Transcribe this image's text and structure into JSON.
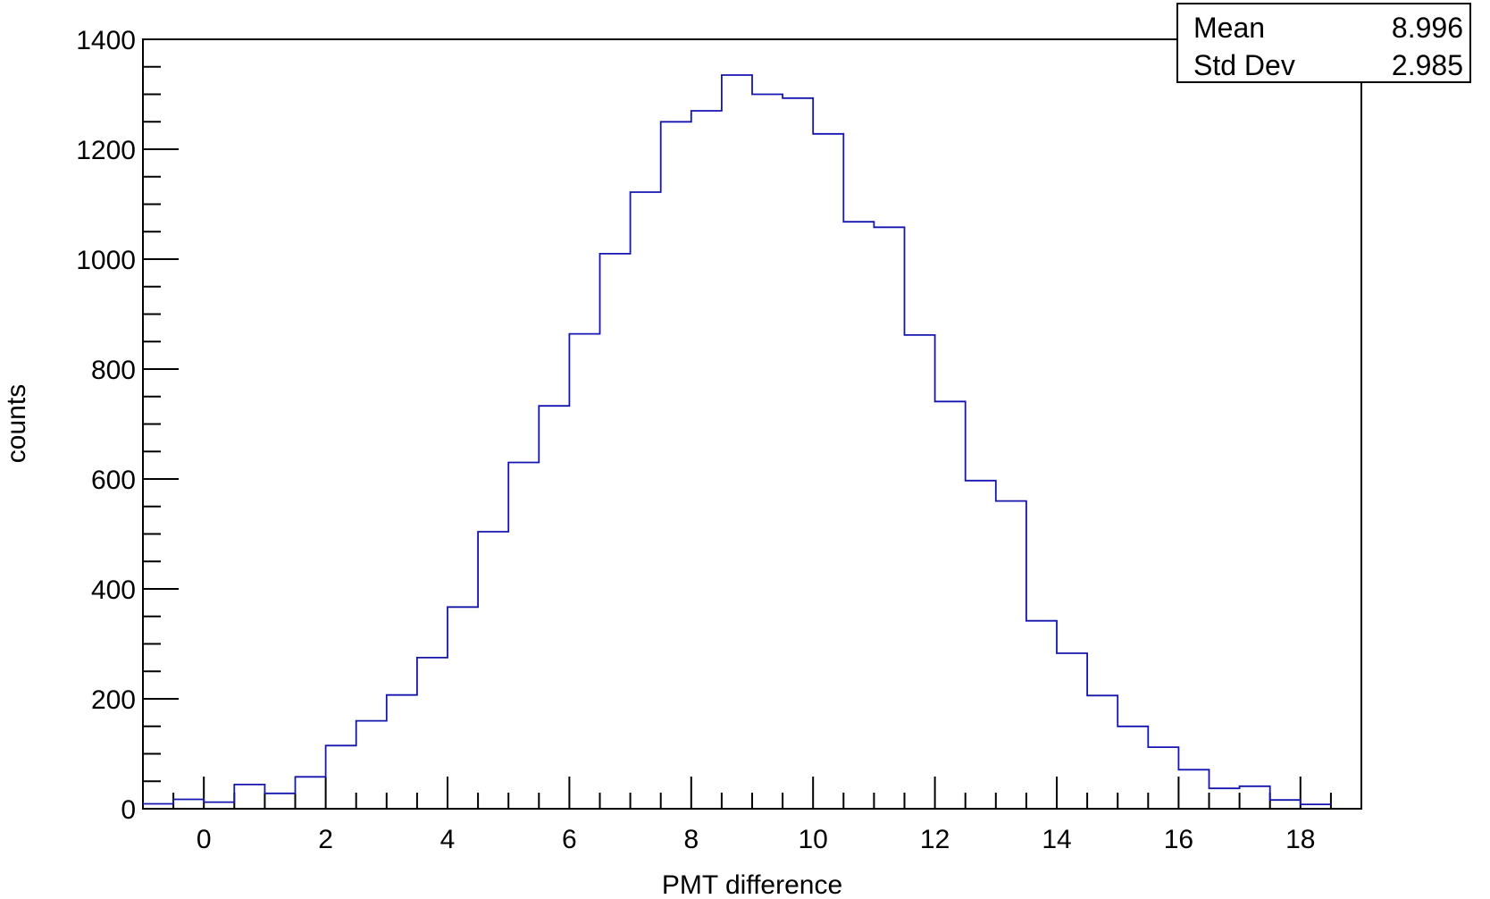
{
  "chart_data": {
    "type": "histogram",
    "xlabel": "PMT difference",
    "ylabel": "counts",
    "xlim": [
      -1,
      19
    ],
    "ylim": [
      0,
      1400
    ],
    "bin_width": 0.5,
    "bin_edges_start": -1,
    "values": [
      9,
      17,
      12,
      44,
      28,
      58,
      115,
      160,
      207,
      275,
      367,
      504,
      630,
      733,
      864,
      1010,
      1122,
      1250,
      1270,
      1335,
      1300,
      1293,
      1228,
      1068,
      1058,
      862,
      741,
      597,
      560,
      342,
      283,
      206,
      150,
      112,
      71,
      37,
      41,
      16,
      8
    ],
    "line_color": "#1515b0",
    "x_major_ticks": [
      0,
      2,
      4,
      6,
      8,
      10,
      12,
      14,
      16,
      18
    ],
    "x_tick_labels": [
      "0",
      "2",
      "4",
      "6",
      "8",
      "10",
      "12",
      "14",
      "16",
      "18"
    ],
    "y_major_ticks": [
      0,
      200,
      400,
      600,
      800,
      1000,
      1200,
      1400
    ],
    "y_tick_labels": [
      "0",
      "200",
      "400",
      "600",
      "800",
      "1000",
      "1200",
      "1400"
    ],
    "grid": false,
    "legend": "none"
  },
  "stats": {
    "placement": "top-right",
    "rows": [
      {
        "label": "Mean",
        "value": "8.996"
      },
      {
        "label": "Std Dev",
        "value": "2.985"
      }
    ]
  }
}
